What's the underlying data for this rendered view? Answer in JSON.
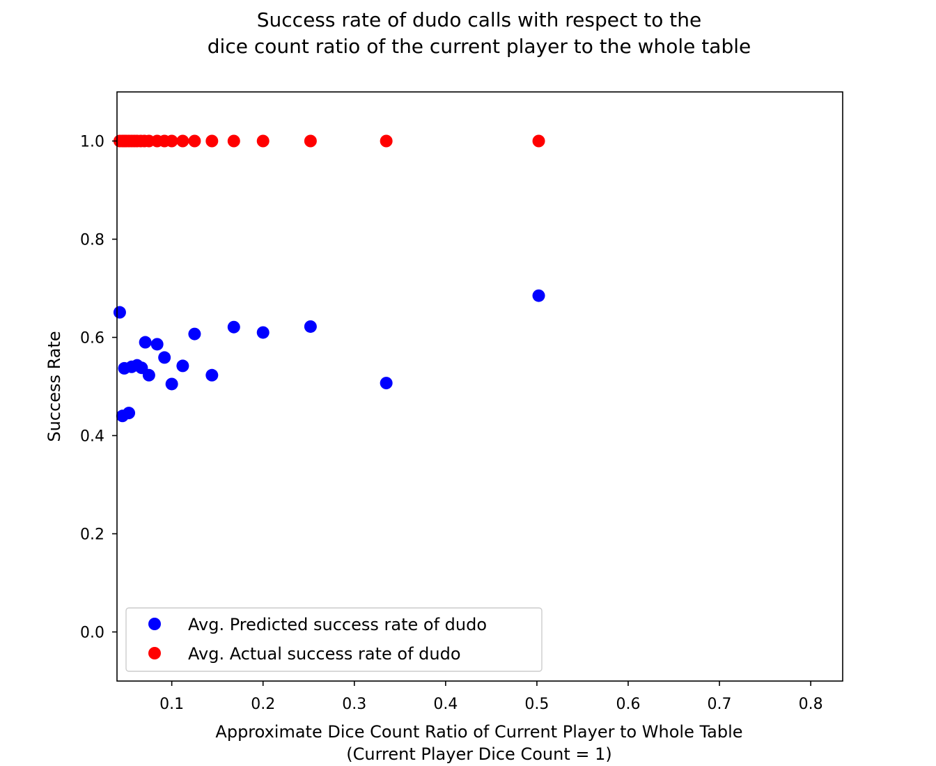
{
  "chart_data": {
    "type": "scatter",
    "title_lines": [
      "Success rate of dudo calls with respect to the",
      "dice count ratio of the current player to the whole table"
    ],
    "xlabel_lines": [
      "Approximate Dice Count Ratio of Current Player to Whole Table",
      "(Current Player Dice Count = 1)"
    ],
    "ylabel": "Success Rate",
    "xlim": [
      0.04,
      0.835
    ],
    "ylim": [
      -0.1,
      1.1
    ],
    "xticks": [
      0.1,
      0.2,
      0.3,
      0.4,
      0.5,
      0.6,
      0.7,
      0.8
    ],
    "xtick_labels": [
      "0.1",
      "0.2",
      "0.3",
      "0.4",
      "0.5",
      "0.6",
      "0.7",
      "0.8"
    ],
    "yticks": [
      0.0,
      0.2,
      0.4,
      0.6,
      0.8,
      1.0
    ],
    "ytick_labels": [
      "0.0",
      "0.2",
      "0.4",
      "0.6",
      "0.8",
      "1.0"
    ],
    "grid": false,
    "legend_position": "lower-left",
    "series": [
      {
        "name": "Avg. Predicted success rate of dudo",
        "color": "#0000ff",
        "points": [
          [
            0.043,
            0.651
          ],
          [
            0.046,
            0.44
          ],
          [
            0.048,
            0.537
          ],
          [
            0.053,
            0.446
          ],
          [
            0.056,
            0.54
          ],
          [
            0.062,
            0.543
          ],
          [
            0.067,
            0.538
          ],
          [
            0.071,
            0.59
          ],
          [
            0.075,
            0.523
          ],
          [
            0.084,
            0.586
          ],
          [
            0.092,
            0.559
          ],
          [
            0.1,
            0.505
          ],
          [
            0.112,
            0.542
          ],
          [
            0.125,
            0.607
          ],
          [
            0.144,
            0.523
          ],
          [
            0.168,
            0.621
          ],
          [
            0.2,
            0.61
          ],
          [
            0.252,
            0.622
          ],
          [
            0.335,
            0.507
          ],
          [
            0.502,
            0.685
          ]
        ]
      },
      {
        "name": "Avg. Actual success rate of dudo",
        "color": "#ff0000",
        "points": [
          [
            0.043,
            1.0
          ],
          [
            0.046,
            1.0
          ],
          [
            0.048,
            1.0
          ],
          [
            0.05,
            1.0
          ],
          [
            0.053,
            1.0
          ],
          [
            0.056,
            1.0
          ],
          [
            0.059,
            1.0
          ],
          [
            0.062,
            1.0
          ],
          [
            0.066,
            1.0
          ],
          [
            0.07,
            1.0
          ],
          [
            0.075,
            1.0
          ],
          [
            0.084,
            1.0
          ],
          [
            0.092,
            1.0
          ],
          [
            0.1,
            1.0
          ],
          [
            0.112,
            1.0
          ],
          [
            0.125,
            1.0
          ],
          [
            0.144,
            1.0
          ],
          [
            0.168,
            1.0
          ],
          [
            0.2,
            1.0
          ],
          [
            0.252,
            1.0
          ],
          [
            0.335,
            1.0
          ],
          [
            0.502,
            1.0
          ]
        ]
      }
    ]
  }
}
